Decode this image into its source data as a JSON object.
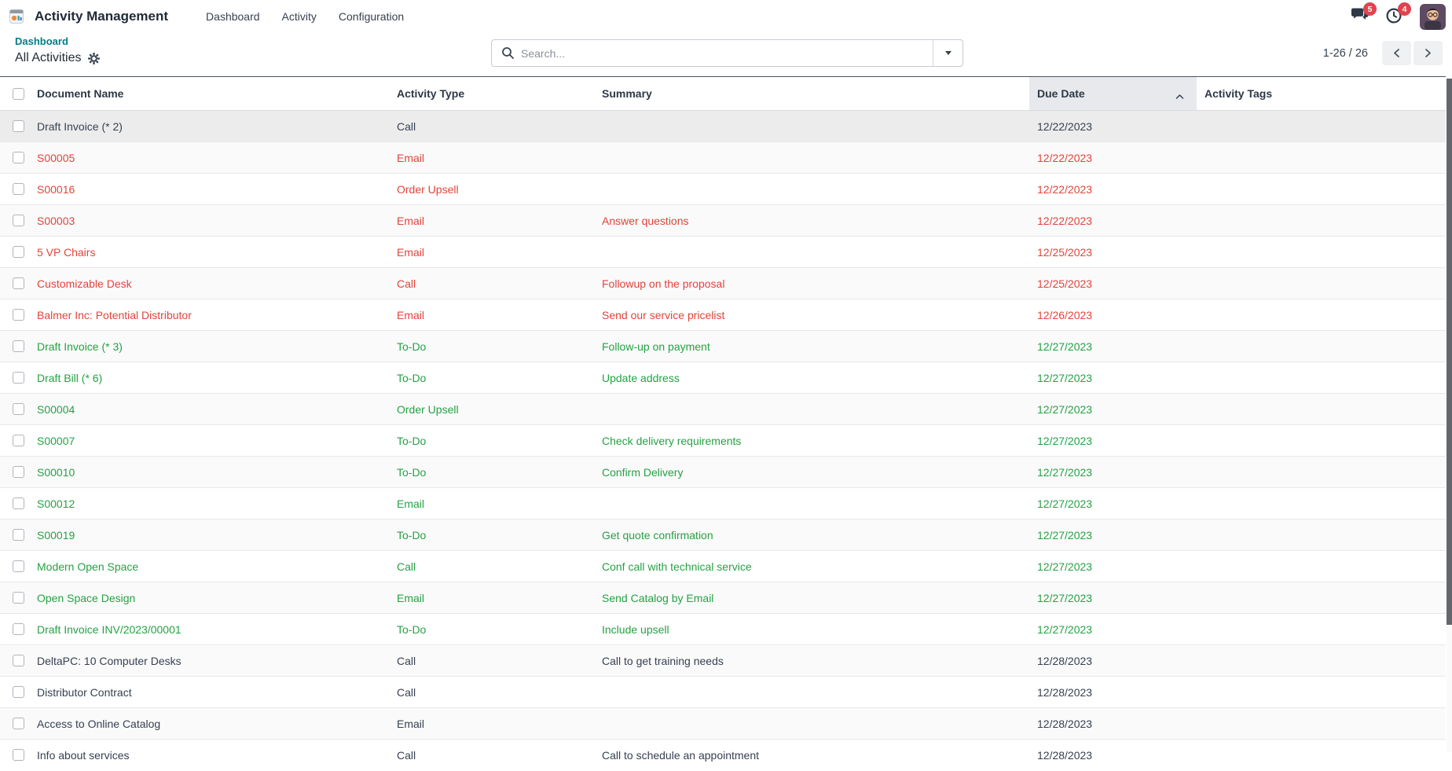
{
  "app": {
    "title": "Activity Management",
    "menus": {
      "dashboard": "Dashboard",
      "activity": "Activity",
      "configuration": "Configuration"
    }
  },
  "topbar": {
    "messages_badge": "5",
    "activities_badge": "4"
  },
  "breadcrumb": {
    "parent": "Dashboard",
    "current": "All Activities"
  },
  "search": {
    "placeholder": "Search..."
  },
  "pagination": {
    "range": "1-26 / 26"
  },
  "table": {
    "headers": {
      "document_name": "Document Name",
      "activity_type": "Activity Type",
      "summary": "Summary",
      "due_date": "Due Date",
      "activity_tags": "Activity Tags"
    },
    "sorted_by": "Due Date",
    "sort_direction": "asc",
    "rows": [
      {
        "name": "Draft Invoice (* 2)",
        "type": "Call",
        "summary": "",
        "due": "12/22/2023",
        "status": "planned",
        "highlighted": true
      },
      {
        "name": "S00005",
        "type": "Email",
        "summary": "",
        "due": "12/22/2023",
        "status": "overdue"
      },
      {
        "name": "S00016",
        "type": "Order Upsell",
        "summary": "",
        "due": "12/22/2023",
        "status": "overdue"
      },
      {
        "name": "S00003",
        "type": "Email",
        "summary": "Answer questions",
        "due": "12/22/2023",
        "status": "overdue"
      },
      {
        "name": "5 VP Chairs",
        "type": "Email",
        "summary": "",
        "due": "12/25/2023",
        "status": "overdue"
      },
      {
        "name": "Customizable Desk",
        "type": "Call",
        "summary": "Followup on the proposal",
        "due": "12/25/2023",
        "status": "overdue"
      },
      {
        "name": "Balmer Inc: Potential Distributor",
        "type": "Email",
        "summary": "Send our service pricelist",
        "due": "12/26/2023",
        "status": "overdue"
      },
      {
        "name": "Draft Invoice (* 3)",
        "type": "To-Do",
        "summary": "Follow-up on payment",
        "due": "12/27/2023",
        "status": "today"
      },
      {
        "name": "Draft Bill (* 6)",
        "type": "To-Do",
        "summary": "Update address",
        "due": "12/27/2023",
        "status": "today"
      },
      {
        "name": "S00004",
        "type": "Order Upsell",
        "summary": "",
        "due": "12/27/2023",
        "status": "today"
      },
      {
        "name": "S00007",
        "type": "To-Do",
        "summary": "Check delivery requirements",
        "due": "12/27/2023",
        "status": "today"
      },
      {
        "name": "S00010",
        "type": "To-Do",
        "summary": "Confirm Delivery",
        "due": "12/27/2023",
        "status": "today"
      },
      {
        "name": "S00012",
        "type": "Email",
        "summary": "",
        "due": "12/27/2023",
        "status": "today"
      },
      {
        "name": "S00019",
        "type": "To-Do",
        "summary": "Get quote confirmation",
        "due": "12/27/2023",
        "status": "today"
      },
      {
        "name": "Modern Open Space",
        "type": "Call",
        "summary": "Conf call with technical service",
        "due": "12/27/2023",
        "status": "today"
      },
      {
        "name": "Open Space Design",
        "type": "Email",
        "summary": "Send Catalog by Email",
        "due": "12/27/2023",
        "status": "today"
      },
      {
        "name": "Draft Invoice INV/2023/00001",
        "type": "To-Do",
        "summary": "Include upsell",
        "due": "12/27/2023",
        "status": "today"
      },
      {
        "name": "DeltaPC: 10 Computer Desks",
        "type": "Call",
        "summary": "Call to get training needs",
        "due": "12/28/2023",
        "status": "planned"
      },
      {
        "name": "Distributor Contract",
        "type": "Call",
        "summary": "",
        "due": "12/28/2023",
        "status": "planned"
      },
      {
        "name": "Access to Online Catalog",
        "type": "Email",
        "summary": "",
        "due": "12/28/2023",
        "status": "planned"
      },
      {
        "name": "Info about services",
        "type": "Call",
        "summary": "Call to schedule an appointment",
        "due": "12/28/2023",
        "status": "planned"
      }
    ]
  },
  "colors": {
    "overdue_red": "#e2443c",
    "today_green": "#25a244",
    "planned_dark": "#374151",
    "accent_teal": "#017e84",
    "badge_red": "#e0434f",
    "sorted_header_bg": "#e7e9ec"
  }
}
